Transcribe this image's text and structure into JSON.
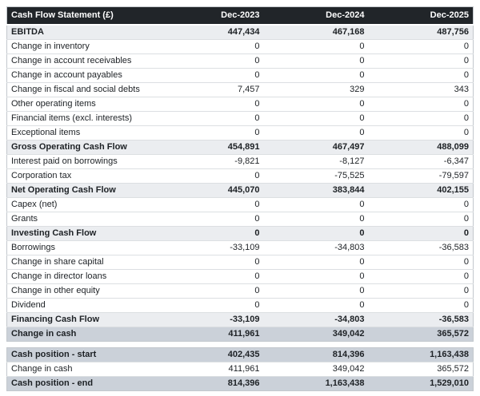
{
  "chart_data": {
    "type": "table",
    "title": "Cash Flow Statement (£)",
    "currency": "£",
    "columns": [
      "Dec-2023",
      "Dec-2024",
      "Dec-2025"
    ],
    "rows": [
      {
        "label": "EBITDA",
        "values": [
          "447,434",
          "467,168",
          "487,756"
        ],
        "style": "section"
      },
      {
        "label": "Change in inventory",
        "values": [
          "0",
          "0",
          "0"
        ],
        "style": "normal"
      },
      {
        "label": "Change in account receivables",
        "values": [
          "0",
          "0",
          "0"
        ],
        "style": "normal"
      },
      {
        "label": "Change in account payables",
        "values": [
          "0",
          "0",
          "0"
        ],
        "style": "normal"
      },
      {
        "label": "Change in fiscal and social debts",
        "values": [
          "7,457",
          "329",
          "343"
        ],
        "style": "normal"
      },
      {
        "label": "Other operating items",
        "values": [
          "0",
          "0",
          "0"
        ],
        "style": "normal"
      },
      {
        "label": "Financial items (excl. interests)",
        "values": [
          "0",
          "0",
          "0"
        ],
        "style": "normal"
      },
      {
        "label": "Exceptional items",
        "values": [
          "0",
          "0",
          "0"
        ],
        "style": "normal"
      },
      {
        "label": "Gross Operating Cash Flow",
        "values": [
          "454,891",
          "467,497",
          "488,099"
        ],
        "style": "section"
      },
      {
        "label": "Interest paid on borrowings",
        "values": [
          "-9,821",
          "-8,127",
          "-6,347"
        ],
        "style": "normal"
      },
      {
        "label": "Corporation tax",
        "values": [
          "0",
          "-75,525",
          "-79,597"
        ],
        "style": "normal"
      },
      {
        "label": "Net Operating Cash Flow",
        "values": [
          "445,070",
          "383,844",
          "402,155"
        ],
        "style": "section"
      },
      {
        "label": "Capex (net)",
        "values": [
          "0",
          "0",
          "0"
        ],
        "style": "normal"
      },
      {
        "label": "Grants",
        "values": [
          "0",
          "0",
          "0"
        ],
        "style": "normal"
      },
      {
        "label": "Investing Cash Flow",
        "values": [
          "0",
          "0",
          "0"
        ],
        "style": "section"
      },
      {
        "label": "Borrowings",
        "values": [
          "-33,109",
          "-34,803",
          "-36,583"
        ],
        "style": "normal"
      },
      {
        "label": "Change in share capital",
        "values": [
          "0",
          "0",
          "0"
        ],
        "style": "normal"
      },
      {
        "label": "Change in director loans",
        "values": [
          "0",
          "0",
          "0"
        ],
        "style": "normal"
      },
      {
        "label": "Change in other equity",
        "values": [
          "0",
          "0",
          "0"
        ],
        "style": "normal"
      },
      {
        "label": "Dividend",
        "values": [
          "0",
          "0",
          "0"
        ],
        "style": "normal"
      },
      {
        "label": "Financing Cash Flow",
        "values": [
          "-33,109",
          "-34,803",
          "-36,583"
        ],
        "style": "section"
      },
      {
        "label": "Change in cash",
        "values": [
          "411,961",
          "349,042",
          "365,572"
        ],
        "style": "highlight"
      }
    ],
    "summary_rows": [
      {
        "label": "Cash position - start",
        "values": [
          "402,435",
          "814,396",
          "1,163,438"
        ],
        "style": "highlight"
      },
      {
        "label": "Change in cash",
        "values": [
          "411,961",
          "349,042",
          "365,572"
        ],
        "style": "normal"
      },
      {
        "label": "Cash position - end",
        "values": [
          "814,396",
          "1,163,438",
          "1,529,010"
        ],
        "style": "highlight"
      }
    ]
  },
  "colors": {
    "header_bg": "#212529",
    "header_text": "#ffffff",
    "section_row_bg": "#ebedf0",
    "highlight_row_bg": "#cbd1d9",
    "text": "#1d2125",
    "row_border": "#dcdfe2",
    "outer_border": "#c3c8cd"
  }
}
